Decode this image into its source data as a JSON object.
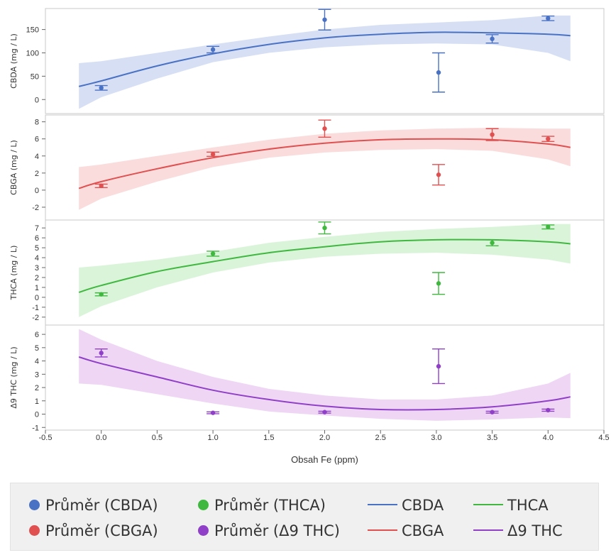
{
  "chart_data": {
    "type": "scatter",
    "xlabel": "Obsah Fe (ppm)",
    "xlim": [
      -0.5,
      4.5
    ],
    "xticks": [
      "-0.5",
      "0.0",
      "0.5",
      "1.0",
      "1.5",
      "2.0",
      "2.5",
      "3.0",
      "3.5",
      "4.0",
      "4.5"
    ],
    "grid": false,
    "legend_position": "bottom",
    "panels": [
      {
        "id": "cbda",
        "ylabel": "CBDA (mg / L)",
        "ylim": [
          -30,
          195
        ],
        "yticks": [
          "0",
          "50",
          "100",
          "150"
        ],
        "color": "#4a72c4",
        "band_color": "#c8d4f0",
        "points": [
          {
            "x": 0.0,
            "y": 25,
            "err": 5
          },
          {
            "x": 1.0,
            "y": 107,
            "err": 7
          },
          {
            "x": 2.0,
            "y": 171,
            "err": 22
          },
          {
            "x": 3.02,
            "y": 58,
            "err": 42
          },
          {
            "x": 3.5,
            "y": 130,
            "err": 9
          },
          {
            "x": 4.0,
            "y": 174,
            "err": 5
          }
        ],
        "fit_x": [
          -0.2,
          0.0,
          0.5,
          1.0,
          1.5,
          2.0,
          2.5,
          3.0,
          3.5,
          4.0,
          4.2
        ],
        "fit_y": [
          28,
          40,
          72,
          98,
          118,
          132,
          140,
          144,
          143,
          140,
          137
        ],
        "band_low": [
          -20,
          5,
          45,
          80,
          100,
          112,
          118,
          120,
          118,
          100,
          82
        ],
        "band_high": [
          78,
          82,
          100,
          118,
          135,
          150,
          160,
          165,
          170,
          180,
          180
        ]
      },
      {
        "id": "cbga",
        "ylabel": "CBGA (mg / L)",
        "ylim": [
          -3.5,
          8.8
        ],
        "yticks": [
          "-2",
          "0",
          "2",
          "4",
          "6",
          "8"
        ],
        "color": "#e05050",
        "band_color": "#f8d0d0",
        "points": [
          {
            "x": 0.0,
            "y": 0.5,
            "err": 0.2
          },
          {
            "x": 1.0,
            "y": 4.2,
            "err": 0.25
          },
          {
            "x": 2.0,
            "y": 7.2,
            "err": 1.0
          },
          {
            "x": 3.02,
            "y": 1.8,
            "err": 1.2
          },
          {
            "x": 3.5,
            "y": 6.5,
            "err": 0.7
          },
          {
            "x": 4.0,
            "y": 6.0,
            "err": 0.3
          }
        ],
        "fit_x": [
          -0.2,
          0.0,
          0.5,
          1.0,
          1.5,
          2.0,
          2.5,
          3.0,
          3.5,
          4.0,
          4.2
        ],
        "fit_y": [
          0.2,
          1.0,
          2.5,
          3.8,
          4.8,
          5.5,
          5.9,
          6.0,
          5.9,
          5.4,
          5.0
        ],
        "band_low": [
          -2.3,
          -1.0,
          1.0,
          2.7,
          3.8,
          4.4,
          4.7,
          4.8,
          4.6,
          3.6,
          2.8
        ],
        "band_high": [
          2.7,
          3.0,
          4.0,
          5.0,
          5.9,
          6.6,
          7.0,
          7.2,
          7.3,
          7.2,
          7.2
        ]
      },
      {
        "id": "thca",
        "ylabel": "THCA (mg / L)",
        "ylim": [
          -2.8,
          7.8
        ],
        "yticks": [
          "-2",
          "-1",
          "0",
          "1",
          "2",
          "3",
          "4",
          "5",
          "6",
          "7"
        ],
        "color": "#40b840",
        "band_color": "#cdf0cd",
        "points": [
          {
            "x": 0.0,
            "y": 0.3,
            "err": 0.15
          },
          {
            "x": 1.0,
            "y": 4.4,
            "err": 0.25
          },
          {
            "x": 2.0,
            "y": 7.0,
            "err": 0.6
          },
          {
            "x": 3.02,
            "y": 1.4,
            "err": 1.1
          },
          {
            "x": 3.5,
            "y": 5.5,
            "err": 0.3
          },
          {
            "x": 4.0,
            "y": 7.1,
            "err": 0.2
          }
        ],
        "fit_x": [
          -0.2,
          0.0,
          0.5,
          1.0,
          1.5,
          2.0,
          2.5,
          3.0,
          3.5,
          4.0,
          4.2
        ],
        "fit_y": [
          0.5,
          1.2,
          2.6,
          3.6,
          4.5,
          5.1,
          5.6,
          5.8,
          5.8,
          5.6,
          5.4
        ],
        "band_low": [
          -2.0,
          -0.9,
          1.0,
          2.5,
          3.5,
          4.1,
          4.4,
          4.5,
          4.3,
          3.8,
          3.4
        ],
        "band_high": [
          3.0,
          3.2,
          3.8,
          4.6,
          5.5,
          6.1,
          6.6,
          6.9,
          7.1,
          7.4,
          7.4
        ]
      },
      {
        "id": "d9thc",
        "ylabel": "Δ9 THC (mg / L)",
        "ylim": [
          -1.2,
          6.7
        ],
        "yticks": [
          "-1",
          "0",
          "1",
          "2",
          "3",
          "4",
          "5",
          "6"
        ],
        "color": "#9040c8",
        "band_color": "#e8c8f0",
        "points": [
          {
            "x": 0.0,
            "y": 4.6,
            "err": 0.3
          },
          {
            "x": 1.0,
            "y": 0.1,
            "err": 0.07
          },
          {
            "x": 2.0,
            "y": 0.15,
            "err": 0.07
          },
          {
            "x": 3.02,
            "y": 3.6,
            "err": 1.3
          },
          {
            "x": 3.5,
            "y": 0.15,
            "err": 0.07
          },
          {
            "x": 4.0,
            "y": 0.3,
            "err": 0.08
          }
        ],
        "fit_x": [
          -0.2,
          0.0,
          0.5,
          1.0,
          1.5,
          2.0,
          2.5,
          3.0,
          3.5,
          4.0,
          4.2
        ],
        "fit_y": [
          4.3,
          3.8,
          2.8,
          1.8,
          1.1,
          0.6,
          0.35,
          0.35,
          0.55,
          1.0,
          1.3
        ],
        "band_low": [
          2.3,
          2.2,
          1.5,
          0.8,
          0.2,
          -0.1,
          -0.35,
          -0.5,
          -0.4,
          -0.25,
          -0.3
        ],
        "band_high": [
          6.4,
          5.6,
          4.0,
          2.8,
          1.9,
          1.4,
          1.1,
          1.1,
          1.4,
          2.3,
          3.1
        ]
      }
    ],
    "legend": [
      {
        "kind": "marker",
        "label": "Průměr (CBDA)",
        "color": "#4a72c4"
      },
      {
        "kind": "marker",
        "label": "Průměr (THCA)",
        "color": "#40b840"
      },
      {
        "kind": "line",
        "label": "CBDA",
        "color": "#4a72c4"
      },
      {
        "kind": "line",
        "label": "THCA",
        "color": "#40b840"
      },
      {
        "kind": "marker",
        "label": "Průměr (CBGA)",
        "color": "#e05050"
      },
      {
        "kind": "marker",
        "label": "Průměr (Δ9 THC)",
        "color": "#9040c8"
      },
      {
        "kind": "line",
        "label": "CBGA",
        "color": "#e05050"
      },
      {
        "kind": "line",
        "label": "Δ9 THC",
        "color": "#9040c8"
      }
    ]
  }
}
